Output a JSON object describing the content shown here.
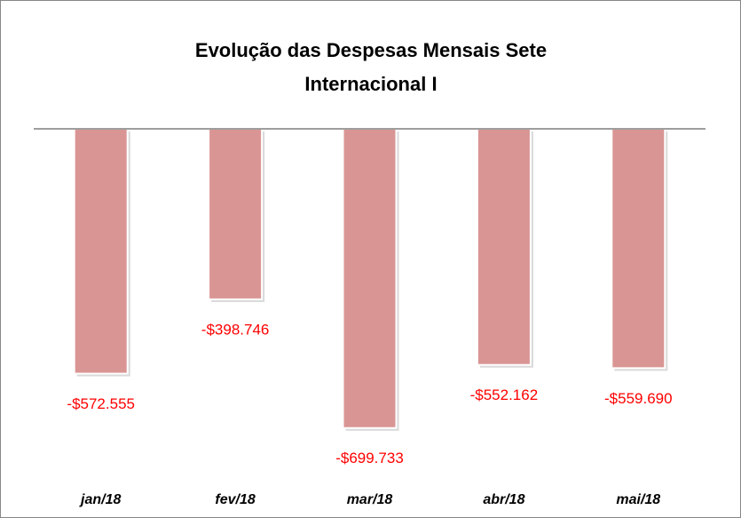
{
  "chart_data": {
    "type": "bar",
    "title": "Evolução das Despesas Mensais Sete Internacional I",
    "categories": [
      "jan/18",
      "fev/18",
      "mar/18",
      "abr/18",
      "mai/18"
    ],
    "values": [
      -572555,
      -398746,
      -699733,
      -552162,
      -559690
    ],
    "value_labels": [
      "-$572.555",
      "-$398.746",
      "-$699.733",
      "-$552.162",
      "-$559.690"
    ],
    "color": "#d99594",
    "label_color": "#ff0000",
    "ylim": [
      -800000,
      0
    ]
  }
}
